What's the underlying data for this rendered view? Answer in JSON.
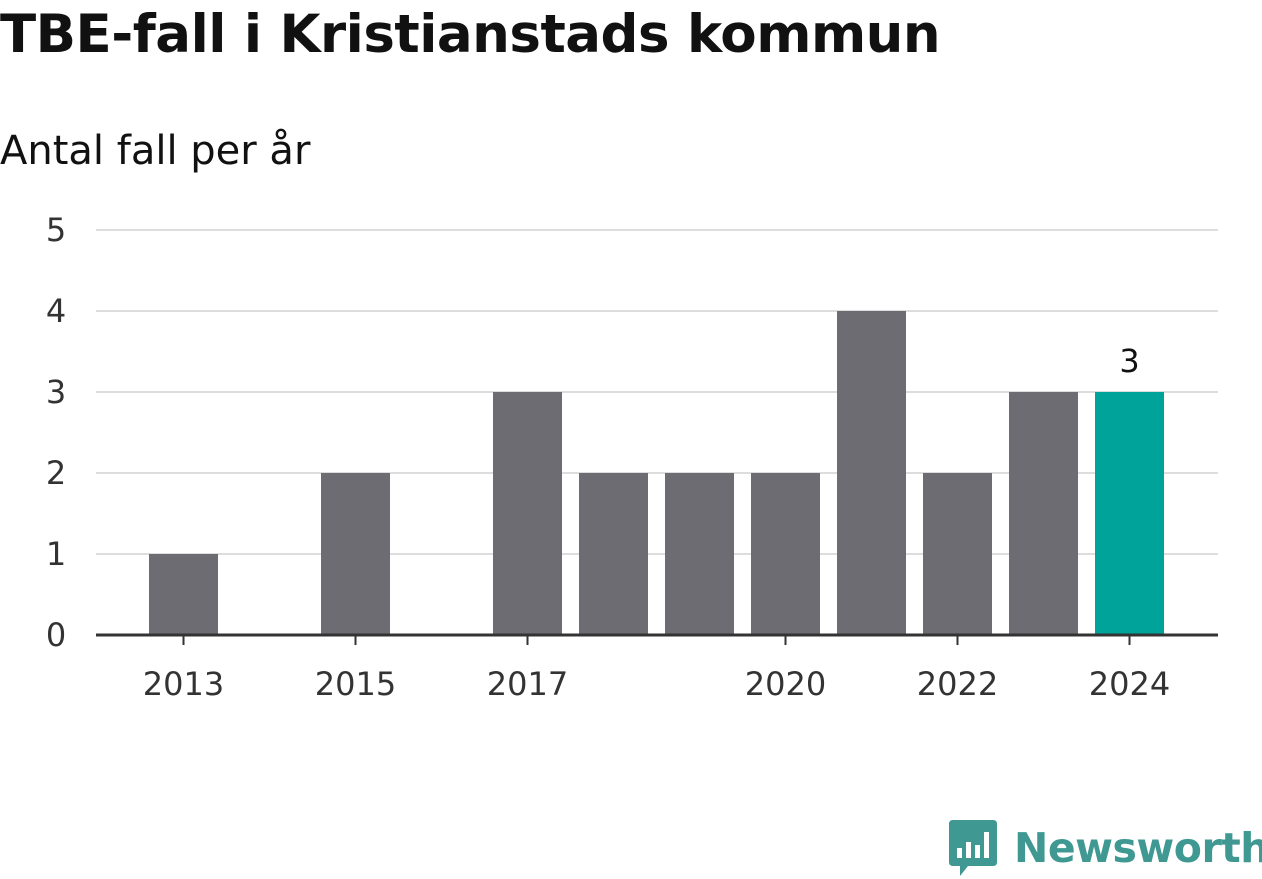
{
  "chart_data": {
    "type": "bar",
    "title": "TBE-fall i Kristianstads kommun",
    "subtitle": "Antal fall per år",
    "xlabel": "",
    "ylabel": "",
    "categories": [
      "2013",
      "2014",
      "2015",
      "2016",
      "2017",
      "2018",
      "2019",
      "2020",
      "2021",
      "2022",
      "2023",
      "2024"
    ],
    "x_tick_labels": [
      "2013",
      "2015",
      "2017",
      "2020",
      "2022",
      "2024"
    ],
    "values": [
      1,
      0,
      2,
      0,
      3,
      2,
      2,
      2,
      4,
      2,
      3,
      3
    ],
    "ylim": [
      0,
      5
    ],
    "y_ticks": [
      "0",
      "1",
      "2",
      "3",
      "4",
      "5"
    ],
    "grid": true,
    "legend": "none",
    "highlight": {
      "category": "2024",
      "value_label": "3"
    },
    "colors": {
      "bar": "#6d6c72",
      "highlight": "#00a39a",
      "grid": "#dddddd",
      "axis": "#333333"
    }
  },
  "brand": {
    "name": "Newsworthy",
    "icon": "newsworthy-logo-icon",
    "color": "#3f9891"
  }
}
